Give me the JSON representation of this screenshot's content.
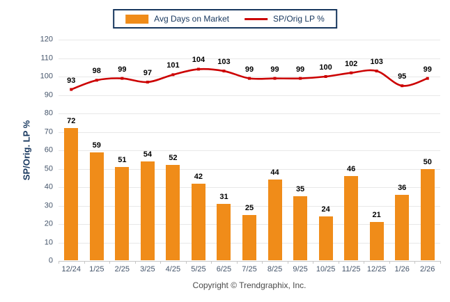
{
  "legend": {
    "bar_label": "Avg Days on Market",
    "line_label": "SP/Orig LP %"
  },
  "y_axis_title": "SP/Orig. LP %",
  "footer": {
    "copyright": "Copyright © Trendgraphix, Inc."
  },
  "colors": {
    "bar": "#F08C19",
    "line": "#CC0000",
    "legend_border": "#17375E",
    "grid": "#E8E8E8",
    "axis": "#C6C6C6",
    "tick_label": "#44546A",
    "data_label": "#000000"
  },
  "chart_data": {
    "type": "combo",
    "categories": [
      "12/24",
      "1/25",
      "2/25",
      "3/25",
      "4/25",
      "5/25",
      "6/25",
      "7/25",
      "8/25",
      "9/25",
      "10/25",
      "11/25",
      "12/25",
      "1/26",
      "2/26"
    ],
    "series": [
      {
        "name": "Avg Days on Market",
        "type": "bar",
        "values": [
          72,
          59,
          51,
          54,
          52,
          42,
          31,
          25,
          44,
          35,
          24,
          46,
          21,
          36,
          50
        ],
        "color": "#F08C19"
      },
      {
        "name": "SP/Orig LP %",
        "type": "line",
        "values": [
          93,
          98,
          99,
          97,
          101,
          104,
          103,
          99,
          99,
          99,
          100,
          102,
          103,
          95,
          99
        ],
        "color": "#CC0000"
      }
    ],
    "title": "",
    "xlabel": "",
    "ylabel": "SP/Orig. LP %",
    "ylim": [
      0,
      120
    ],
    "yticks": [
      0,
      10,
      20,
      30,
      40,
      50,
      60,
      70,
      80,
      90,
      100,
      110,
      120
    ],
    "grid": true,
    "legend_position": "top"
  }
}
